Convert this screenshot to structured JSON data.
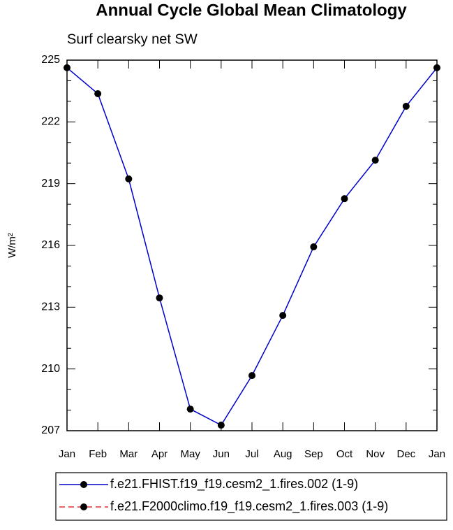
{
  "chart_data": {
    "type": "line",
    "title": "Annual Cycle Global Mean Climatology",
    "subtitle": "Surf clearsky net SW",
    "y_label": "W/m²",
    "categories": [
      "Jan",
      "Feb",
      "Mar",
      "Apr",
      "May",
      "Jun",
      "Jul",
      "Aug",
      "Sep",
      "Oct",
      "Nov",
      "Dec",
      "Jan"
    ],
    "series": [
      {
        "name": "f.e21.FHIST.f19_f19.cesm2_1.fires.002 (1-9)",
        "color": "#0000cc",
        "dash": false,
        "values": [
          224.63,
          223.37,
          219.23,
          213.45,
          208.05,
          207.27,
          209.68,
          212.6,
          215.93,
          218.27,
          220.14,
          222.76,
          224.63
        ]
      },
      {
        "name": "f.e21.F2000climo.f19_f19.cesm2_1.fires.003 (1-9)",
        "color": "#e03030",
        "dash": true,
        "values": [
          null,
          null,
          null,
          null,
          null,
          null,
          null,
          null,
          null,
          null,
          null,
          null,
          null
        ]
      }
    ],
    "ylim": [
      207,
      225
    ],
    "yticks": [
      207,
      210,
      213,
      216,
      219,
      222,
      225
    ],
    "yminorticks": [
      208,
      209,
      211,
      212,
      214,
      215,
      217,
      218,
      220,
      221,
      223,
      224
    ],
    "marker": "circle"
  }
}
